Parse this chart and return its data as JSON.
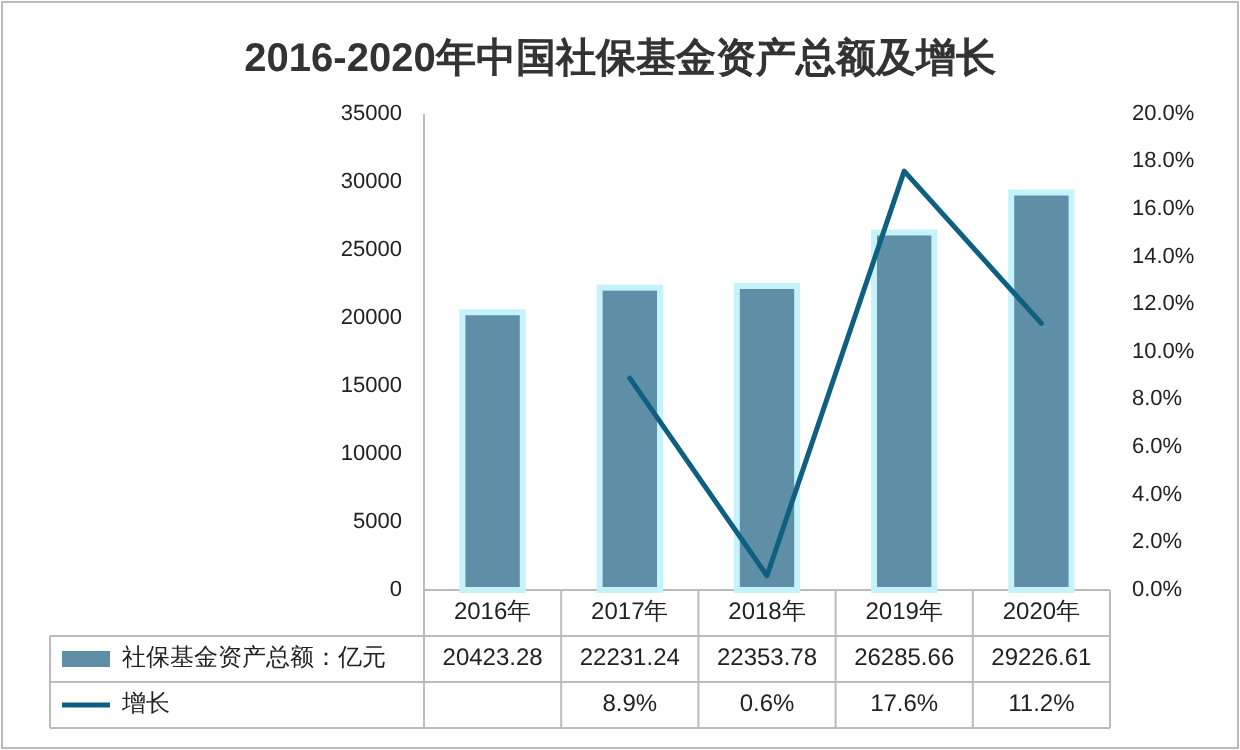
{
  "chart_data": {
    "type": "bar",
    "title": "2016-2020年中国社保基金资产总额及增长",
    "categories": [
      "2016年",
      "2017年",
      "2018年",
      "2019年",
      "2020年"
    ],
    "series": [
      {
        "name": "社保基金资产总额：亿元",
        "color": "#5f8fa6",
        "values": [
          20423.28,
          22231.24,
          22353.78,
          26285.66,
          29226.61
        ],
        "value_labels": [
          "20423.28",
          "22231.24",
          "22353.78",
          "26285.66",
          "29226.61"
        ]
      },
      {
        "name": "增长",
        "type": "line",
        "axis": "y2",
        "color": "#0f5f80",
        "values": [
          null,
          8.9,
          0.6,
          17.6,
          11.2
        ],
        "value_labels": [
          null,
          "8.9%",
          "0.6%",
          "17.6%",
          "11.2%"
        ]
      }
    ],
    "ylim": [
      0,
      35000
    ],
    "yticks": [
      0,
      5000,
      10000,
      15000,
      20000,
      25000,
      30000,
      35000
    ],
    "y2lim": [
      0,
      20
    ],
    "y2ticks": [
      {
        "value": 0,
        "label": "0.0%"
      },
      {
        "value": 2,
        "label": "2.0%"
      },
      {
        "value": 4,
        "label": "4.0%"
      },
      {
        "value": 6,
        "label": "6.0%"
      },
      {
        "value": 8,
        "label": "8.0%"
      },
      {
        "value": 10,
        "label": "10.0%"
      },
      {
        "value": 12,
        "label": "12.0%"
      },
      {
        "value": 14,
        "label": "14.0%"
      },
      {
        "value": 16,
        "label": "16.0%"
      },
      {
        "value": 18,
        "label": "18.0%"
      },
      {
        "value": 20,
        "label": "20.0%"
      }
    ],
    "legend": "bottom"
  }
}
